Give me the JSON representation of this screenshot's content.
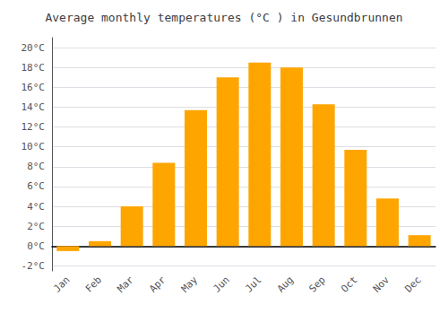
{
  "chart_data": {
    "type": "bar",
    "title": "Average monthly temperatures (°C ) in Gesundbrunnen",
    "categories": [
      "Jan",
      "Feb",
      "Mar",
      "Apr",
      "May",
      "Jun",
      "Jul",
      "Aug",
      "Sep",
      "Oct",
      "Nov",
      "Dec"
    ],
    "values": [
      -0.5,
      0.5,
      4.0,
      8.4,
      13.7,
      17.0,
      18.5,
      18.0,
      14.3,
      9.7,
      4.8,
      1.1
    ],
    "color": "#FFA500",
    "ylim": [
      -2.5,
      21
    ],
    "yticks": [
      {
        "value": -2,
        "label": "-2°C"
      },
      {
        "value": 0,
        "label": "0°C"
      },
      {
        "value": 2,
        "label": "2°C"
      },
      {
        "value": 4,
        "label": "4°C"
      },
      {
        "value": 6,
        "label": "6°C"
      },
      {
        "value": 8,
        "label": "8°C"
      },
      {
        "value": 10,
        "label": "10°C"
      },
      {
        "value": 12,
        "label": "12°C"
      },
      {
        "value": 14,
        "label": "14°C"
      },
      {
        "value": 16,
        "label": "16°C"
      },
      {
        "value": 18,
        "label": "18°C"
      },
      {
        "value": 20,
        "label": "20°C"
      }
    ],
    "grid": true
  }
}
